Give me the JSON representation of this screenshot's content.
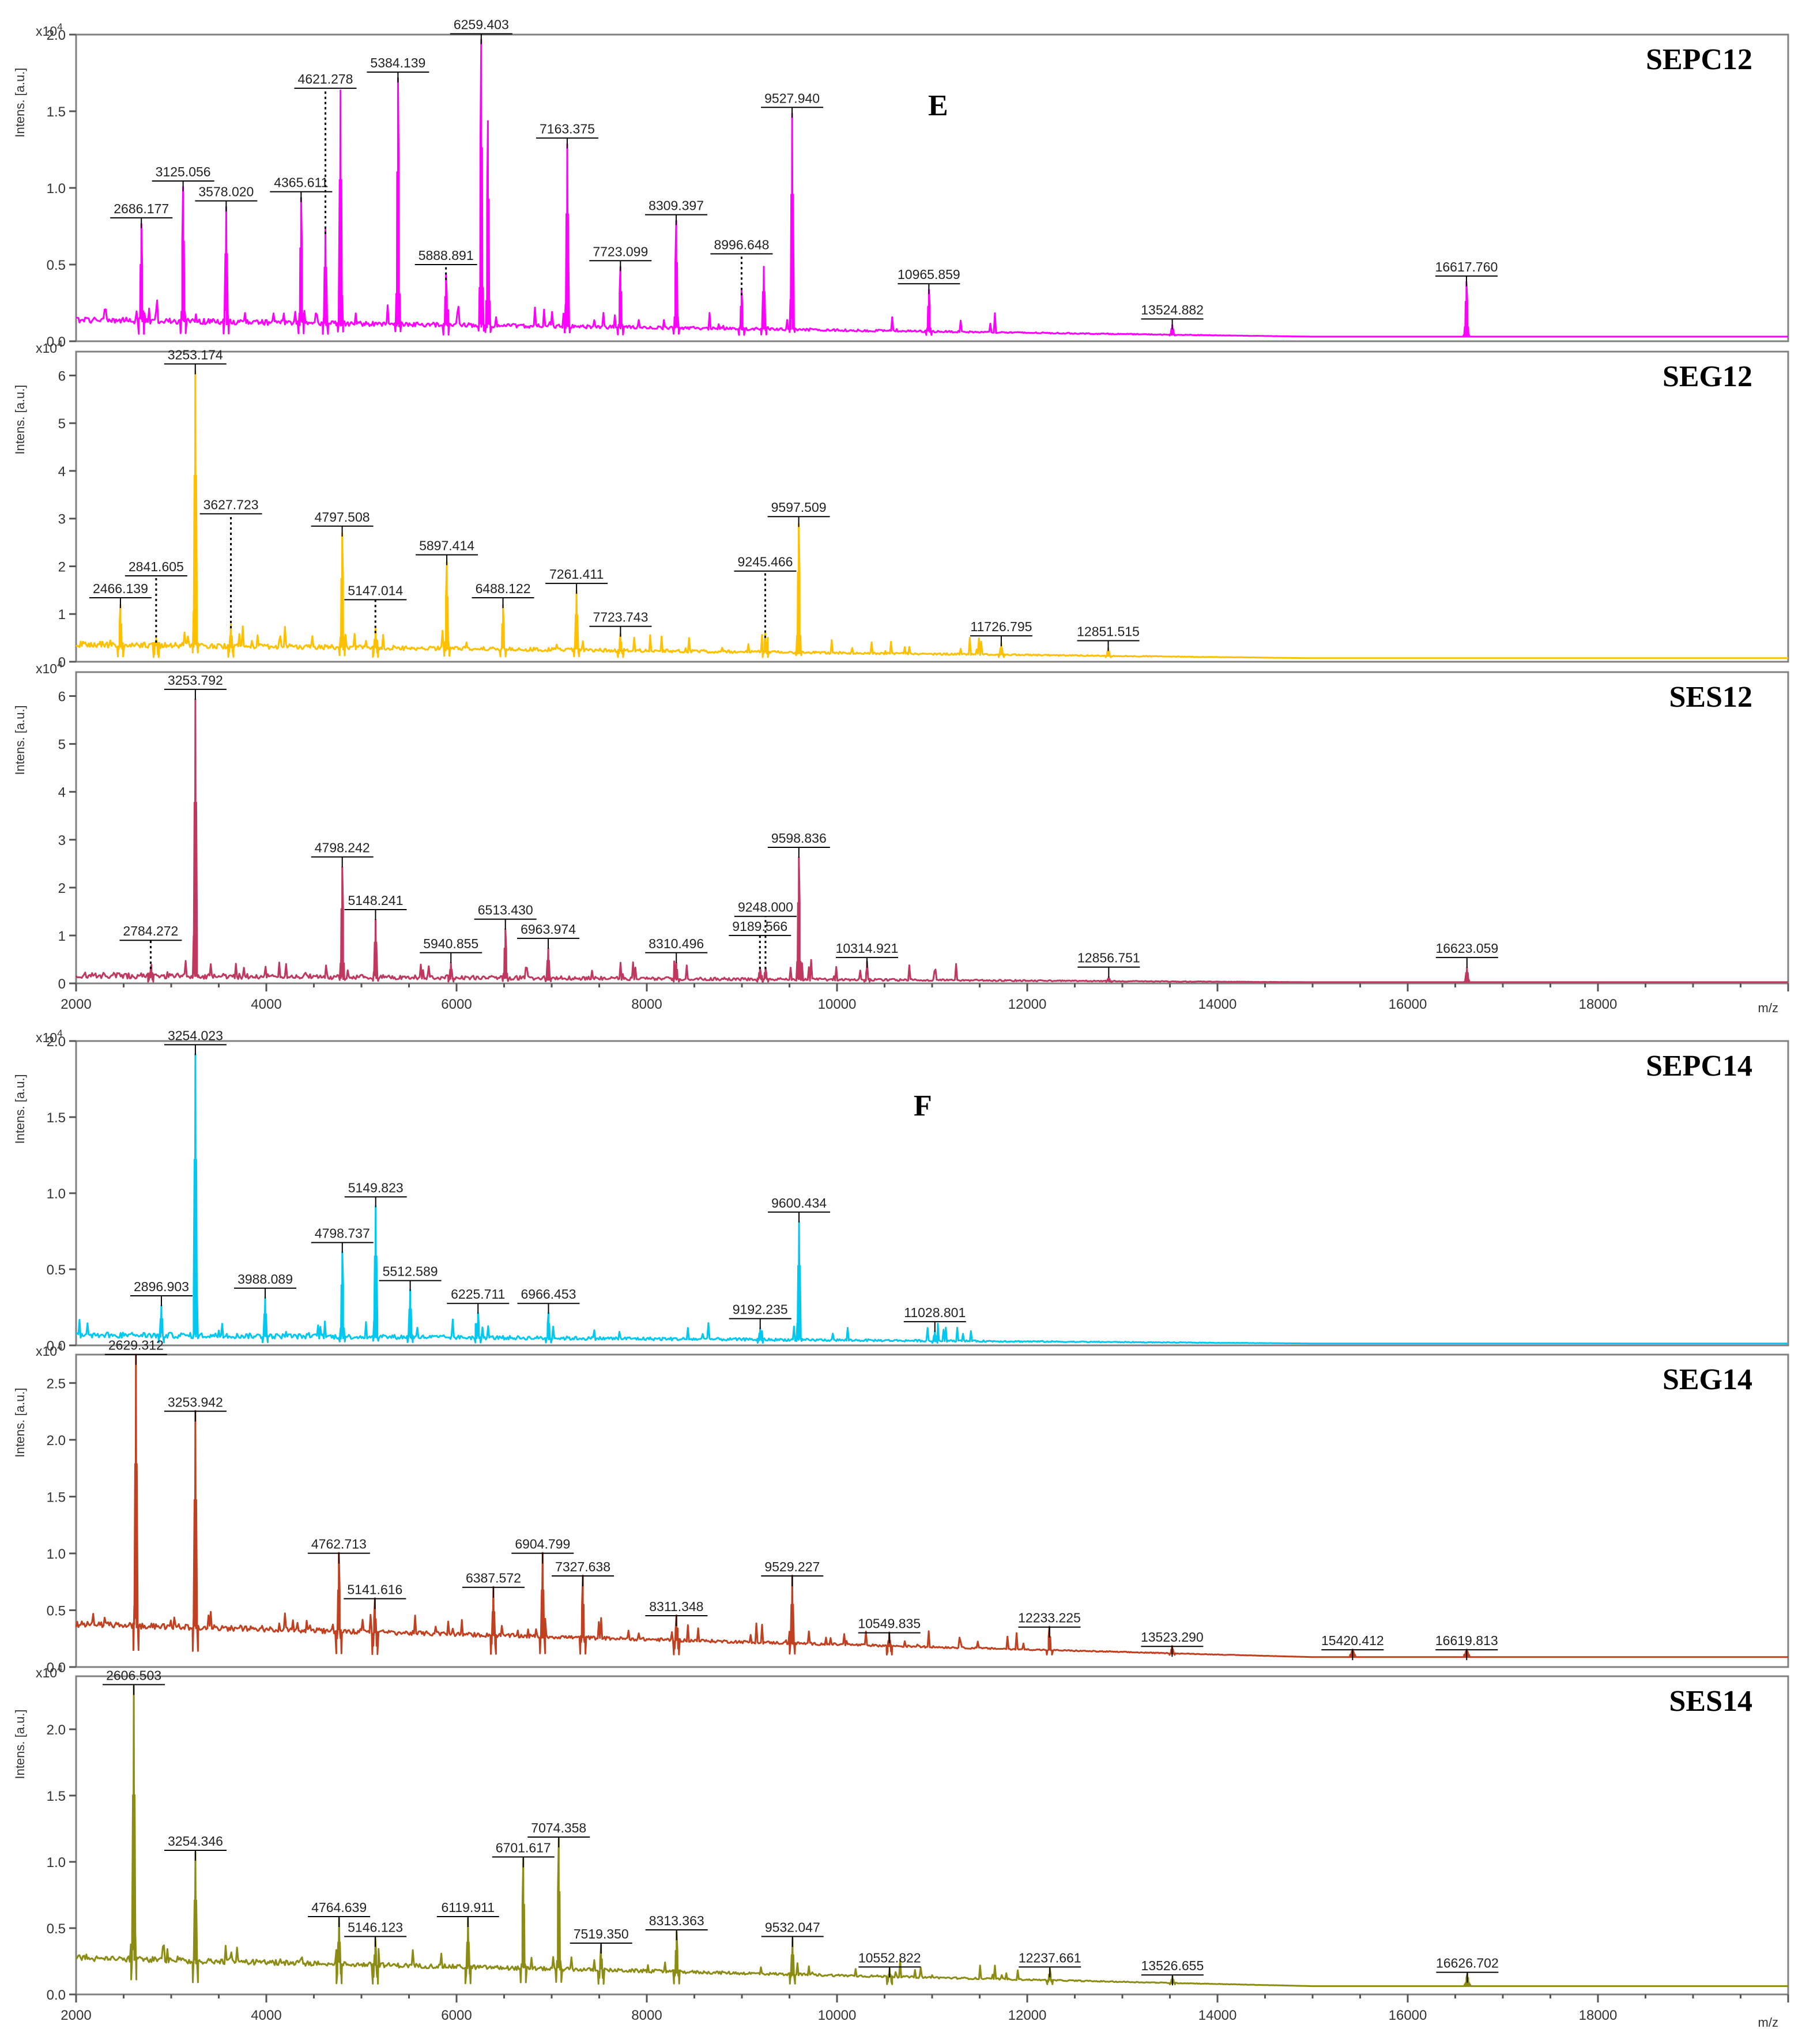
{
  "figure": {
    "group_labels": [
      "E",
      "F"
    ],
    "y_axis_label": "Intens. [a.u.]",
    "y_axis_exponent_base": "x10",
    "y_axis_exponent_power": "4",
    "x_axis_label": "m/z"
  },
  "chart_data": [
    {
      "type": "line",
      "group": "E",
      "title": "SEPC12",
      "color": "#ff00ff",
      "xlabel": "m/z",
      "ylabel": "Intens. [a.u.]",
      "xlim": [
        2000,
        20000
      ],
      "ylim": [
        0,
        2.0
      ],
      "yticks": [
        "0.0",
        "0.5",
        "1.0",
        "1.5",
        "2.0"
      ],
      "xticks": [],
      "baseline": 0.12,
      "peaks": [
        {
          "mz": 2686.177,
          "intensity": 0.73,
          "label": "2686.177",
          "line": false
        },
        {
          "mz": 3125.056,
          "intensity": 0.97,
          "label": "3125.056",
          "line": false
        },
        {
          "mz": 3578.02,
          "intensity": 0.84,
          "label": "3578.020",
          "line": false
        },
        {
          "mz": 4365.611,
          "intensity": 0.9,
          "label": "4365.611",
          "line": false
        },
        {
          "mz": 4621.278,
          "intensity": 0.7,
          "label": "4621.278",
          "line": true,
          "label_y": 1.65
        },
        {
          "mz": 4780,
          "intensity": 1.6
        },
        {
          "mz": 5384.139,
          "intensity": 1.68,
          "label": "5384.139",
          "line": false
        },
        {
          "mz": 5888.891,
          "intensity": 0.4,
          "label": "5888.891",
          "line": true,
          "label_y": 0.5
        },
        {
          "mz": 6259.403,
          "intensity": 1.93,
          "label": "6259.403",
          "line": false
        },
        {
          "mz": 6330,
          "intensity": 1.4
        },
        {
          "mz": 7163.375,
          "intensity": 1.25,
          "label": "7163.375",
          "line": false
        },
        {
          "mz": 7723.099,
          "intensity": 0.45,
          "label": "7723.099",
          "line": false
        },
        {
          "mz": 8309.397,
          "intensity": 0.75,
          "label": "8309.397",
          "line": false
        },
        {
          "mz": 8996.648,
          "intensity": 0.3,
          "label": "8996.648",
          "line": true,
          "label_y": 0.57
        },
        {
          "mz": 9230,
          "intensity": 0.45
        },
        {
          "mz": 9527.94,
          "intensity": 1.45,
          "label": "9527.940",
          "line": false
        },
        {
          "mz": 10965.859,
          "intensity": 0.3,
          "label": "10965.859",
          "line": false
        },
        {
          "mz": 13524.882,
          "intensity": 0.07,
          "label": "13524.882",
          "line": false
        },
        {
          "mz": 16617.76,
          "intensity": 0.35,
          "label": "16617.760",
          "line": false
        }
      ]
    },
    {
      "type": "line",
      "group": "E",
      "title": "SEG12",
      "color": "#ffc000",
      "xlabel": "m/z",
      "ylabel": "Intens. [a.u.]",
      "xlim": [
        2000,
        20000
      ],
      "ylim": [
        0,
        6.5
      ],
      "yticks": [
        "0",
        "1",
        "2",
        "3",
        "4",
        "5",
        "6"
      ],
      "xticks": [],
      "baseline": 0.3,
      "peaks": [
        {
          "mz": 2466.139,
          "intensity": 1.1,
          "label": "2466.139",
          "line": false
        },
        {
          "mz": 2841.605,
          "intensity": 0.4,
          "label": "2841.605",
          "line": true,
          "label_y": 1.8
        },
        {
          "mz": 3253.174,
          "intensity": 6.0,
          "label": "3253.174",
          "line": false
        },
        {
          "mz": 3627.723,
          "intensity": 0.7,
          "label": "3627.723",
          "line": true,
          "label_y": 3.1
        },
        {
          "mz": 4797.508,
          "intensity": 2.6,
          "label": "4797.508",
          "line": false
        },
        {
          "mz": 5147.014,
          "intensity": 0.6,
          "label": "5147.014",
          "line": true,
          "label_y": 1.3
        },
        {
          "mz": 5897.414,
          "intensity": 2.0,
          "label": "5897.414",
          "line": false
        },
        {
          "mz": 6488.122,
          "intensity": 1.1,
          "label": "6488.122",
          "line": false
        },
        {
          "mz": 7261.411,
          "intensity": 1.4,
          "label": "7261.411",
          "line": false
        },
        {
          "mz": 7723.743,
          "intensity": 0.5,
          "label": "7723.743",
          "line": false
        },
        {
          "mz": 9245.466,
          "intensity": 0.5,
          "label": "9245.466",
          "line": true,
          "label_y": 1.9
        },
        {
          "mz": 9597.509,
          "intensity": 2.8,
          "label": "9597.509",
          "line": false
        },
        {
          "mz": 11726.795,
          "intensity": 0.3,
          "label": "11726.795",
          "line": false
        },
        {
          "mz": 12851.515,
          "intensity": 0.2,
          "label": "12851.515",
          "line": false
        }
      ]
    },
    {
      "type": "line",
      "group": "E",
      "title": "SES12",
      "color": "#c0385f",
      "xlabel": "m/z",
      "ylabel": "Intens. [a.u.]",
      "xlim": [
        2000,
        20000
      ],
      "ylim": [
        0,
        6.5
      ],
      "yticks": [
        "0",
        "1",
        "2",
        "3",
        "4",
        "5",
        "6"
      ],
      "xticks": [
        "2000",
        "4000",
        "6000",
        "8000",
        "10000",
        "12000",
        "14000",
        "16000",
        "18000"
      ],
      "baseline": 0.1,
      "peaks": [
        {
          "mz": 2784.272,
          "intensity": 0.3,
          "label": "2784.272",
          "line": true,
          "label_y": 0.9
        },
        {
          "mz": 3253.792,
          "intensity": 5.9,
          "label": "3253.792",
          "line": false
        },
        {
          "mz": 4798.242,
          "intensity": 2.4,
          "label": "4798.242",
          "line": false
        },
        {
          "mz": 5148.241,
          "intensity": 1.3,
          "label": "5148.241",
          "line": false
        },
        {
          "mz": 5940.855,
          "intensity": 0.4,
          "label": "5940.855",
          "line": false
        },
        {
          "mz": 6513.43,
          "intensity": 1.1,
          "label": "6513.430",
          "line": false
        },
        {
          "mz": 6963.974,
          "intensity": 0.7,
          "label": "6963.974",
          "line": false
        },
        {
          "mz": 8310.496,
          "intensity": 0.4,
          "label": "8310.496",
          "line": false
        },
        {
          "mz": 9189.566,
          "intensity": 0.3,
          "label": "9189.566",
          "line": true,
          "label_y": 1.0
        },
        {
          "mz": 9248.0,
          "intensity": 0.3,
          "label": "9248.000",
          "line": true,
          "label_y": 1.4
        },
        {
          "mz": 9598.836,
          "intensity": 2.6,
          "label": "9598.836",
          "line": false
        },
        {
          "mz": 10314.921,
          "intensity": 0.3,
          "label": "10314.921",
          "line": false
        },
        {
          "mz": 12856.751,
          "intensity": 0.1,
          "label": "12856.751",
          "line": false
        },
        {
          "mz": 16623.059,
          "intensity": 0.3,
          "label": "16623.059",
          "line": false
        }
      ]
    },
    {
      "type": "line",
      "group": "F",
      "title": "SEPC14",
      "color": "#00c8f0",
      "xlabel": "m/z",
      "ylabel": "Intens. [a.u.]",
      "xlim": [
        2000,
        20000
      ],
      "ylim": [
        0,
        2.0
      ],
      "yticks": [
        "0.0",
        "0.5",
        "1.0",
        "1.5",
        "2.0"
      ],
      "xticks": [],
      "baseline": 0.05,
      "peaks": [
        {
          "mz": 2896.903,
          "intensity": 0.25,
          "label": "2896.903",
          "line": false
        },
        {
          "mz": 3254.023,
          "intensity": 1.9,
          "label": "3254.023",
          "line": false
        },
        {
          "mz": 3988.089,
          "intensity": 0.3,
          "label": "3988.089",
          "line": false
        },
        {
          "mz": 4798.737,
          "intensity": 0.6,
          "label": "4798.737",
          "line": false
        },
        {
          "mz": 5149.823,
          "intensity": 0.9,
          "label": "5149.823",
          "line": false
        },
        {
          "mz": 5512.589,
          "intensity": 0.35,
          "label": "5512.589",
          "line": false
        },
        {
          "mz": 6225.711,
          "intensity": 0.2,
          "label": "6225.711",
          "line": false
        },
        {
          "mz": 6966.453,
          "intensity": 0.2,
          "label": "6966.453",
          "line": false
        },
        {
          "mz": 9192.235,
          "intensity": 0.1,
          "label": "9192.235",
          "line": false
        },
        {
          "mz": 9600.434,
          "intensity": 0.8,
          "label": "9600.434",
          "line": false
        },
        {
          "mz": 11028.801,
          "intensity": 0.08,
          "label": "11028.801",
          "line": false
        }
      ]
    },
    {
      "type": "line",
      "group": "F",
      "title": "SEG14",
      "color": "#c04020",
      "xlabel": "m/z",
      "ylabel": "Intens. [a.u.]",
      "xlim": [
        2000,
        20000
      ],
      "ylim": [
        0,
        2.75
      ],
      "yticks": [
        "0.0",
        "0.5",
        "1.0",
        "1.5",
        "2.0",
        "2.5"
      ],
      "xticks": [],
      "baseline": 0.35,
      "peaks": [
        {
          "mz": 2629.312,
          "intensity": 2.65,
          "label": "2629.312",
          "line": false
        },
        {
          "mz": 3253.942,
          "intensity": 2.15,
          "label": "3253.942",
          "line": false
        },
        {
          "mz": 4762.713,
          "intensity": 0.9,
          "label": "4762.713",
          "line": false
        },
        {
          "mz": 5141.616,
          "intensity": 0.5,
          "label": "5141.616",
          "line": false
        },
        {
          "mz": 6387.572,
          "intensity": 0.6,
          "label": "6387.572",
          "line": false
        },
        {
          "mz": 6904.799,
          "intensity": 0.9,
          "label": "6904.799",
          "line": false
        },
        {
          "mz": 7327.638,
          "intensity": 0.7,
          "label": "7327.638",
          "line": false
        },
        {
          "mz": 8311.348,
          "intensity": 0.35,
          "label": "8311.348",
          "line": false
        },
        {
          "mz": 9529.227,
          "intensity": 0.7,
          "label": "9529.227",
          "line": false
        },
        {
          "mz": 10549.835,
          "intensity": 0.2,
          "label": "10549.835",
          "line": false
        },
        {
          "mz": 12233.225,
          "intensity": 0.25,
          "label": "12233.225",
          "line": false
        },
        {
          "mz": 13523.29,
          "intensity": 0.08,
          "label": "13523.290",
          "line": false
        },
        {
          "mz": 15420.412,
          "intensity": 0.05,
          "label": "15420.412",
          "line": false
        },
        {
          "mz": 16619.813,
          "intensity": 0.05,
          "label": "16619.813",
          "line": false
        }
      ]
    },
    {
      "type": "line",
      "group": "F",
      "title": "SES14",
      "color": "#8c8c14",
      "xlabel": "m/z",
      "ylabel": "Intens. [a.u.]",
      "xlim": [
        2000,
        20000
      ],
      "ylim": [
        0,
        2.4
      ],
      "yticks": [
        "0.0",
        "0.5",
        "1.0",
        "1.5",
        "2.0"
      ],
      "xticks": [
        "2000",
        "4000",
        "6000",
        "8000",
        "10000",
        "12000",
        "14000",
        "16000",
        "18000"
      ],
      "baseline": 0.25,
      "peaks": [
        {
          "mz": 2606.503,
          "intensity": 2.25,
          "label": "2606.503",
          "line": false
        },
        {
          "mz": 3254.346,
          "intensity": 1.0,
          "label": "3254.346",
          "line": false
        },
        {
          "mz": 4764.639,
          "intensity": 0.5,
          "label": "4764.639",
          "line": false
        },
        {
          "mz": 5146.123,
          "intensity": 0.35,
          "label": "5146.123",
          "line": false
        },
        {
          "mz": 6119.911,
          "intensity": 0.5,
          "label": "6119.911",
          "line": false
        },
        {
          "mz": 6701.617,
          "intensity": 0.95,
          "label": "6701.617",
          "line": false
        },
        {
          "mz": 7074.358,
          "intensity": 1.1,
          "label": "7074.358",
          "line": false
        },
        {
          "mz": 7519.35,
          "intensity": 0.3,
          "label": "7519.350",
          "line": false
        },
        {
          "mz": 8313.363,
          "intensity": 0.4,
          "label": "8313.363",
          "line": false
        },
        {
          "mz": 9532.047,
          "intensity": 0.35,
          "label": "9532.047",
          "line": false
        },
        {
          "mz": 10552.822,
          "intensity": 0.12,
          "label": "10552.822",
          "line": false
        },
        {
          "mz": 12237.661,
          "intensity": 0.12,
          "label": "12237.661",
          "line": false
        },
        {
          "mz": 13526.655,
          "intensity": 0.06,
          "label": "13526.655",
          "line": false
        },
        {
          "mz": 16626.702,
          "intensity": 0.08,
          "label": "16626.702",
          "line": false
        }
      ]
    }
  ]
}
